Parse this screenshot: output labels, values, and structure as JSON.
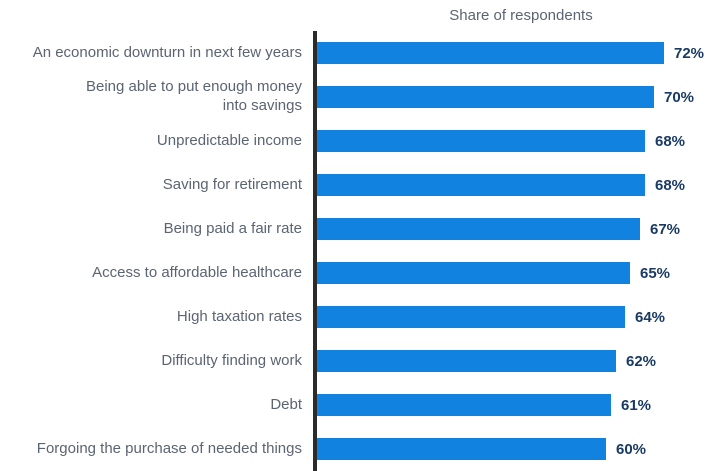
{
  "chart_data": {
    "type": "bar",
    "orientation": "horizontal",
    "title": "Share of respondents",
    "categories": [
      "An economic downturn in next few years",
      "Being able to put enough money\ninto savings",
      "Unpredictable income",
      "Saving for retirement",
      "Being paid a fair rate",
      "Access to affordable healthcare",
      "High taxation rates",
      "Difficulty finding work",
      "Debt",
      "Forgoing the purchase of needed things"
    ],
    "values": [
      72,
      70,
      68,
      68,
      67,
      65,
      64,
      62,
      61,
      60
    ],
    "value_suffix": "%",
    "xlim": [
      0,
      75
    ],
    "grid": false,
    "legend": "none",
    "bar_color": "#1182df",
    "axis_color": "#2b2b2b",
    "category_label_color": "#5b6472",
    "value_label_color": "#1a3a63",
    "title_color": "#5b6472",
    "background_color": "#ffffff"
  }
}
